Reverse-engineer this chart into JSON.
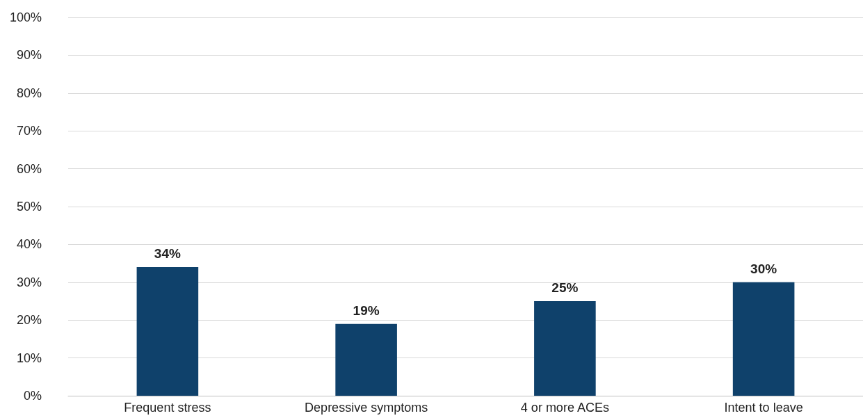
{
  "chart_data": {
    "type": "bar",
    "categories": [
      "Frequent stress",
      "Depressive symptoms",
      "4 or more ACEs",
      "Intent to leave"
    ],
    "values": [
      34,
      19,
      25,
      30
    ],
    "color": "#0f416b",
    "value_labels": [
      "34%",
      "19%",
      "25%",
      "30%"
    ],
    "ylim": [
      0,
      100
    ],
    "yticks": [
      {
        "value": 0,
        "label": "0%"
      },
      {
        "value": 10,
        "label": "10%"
      },
      {
        "value": 20,
        "label": "20%"
      },
      {
        "value": 30,
        "label": "30%"
      },
      {
        "value": 40,
        "label": "40%"
      },
      {
        "value": 50,
        "label": "50%"
      },
      {
        "value": 60,
        "label": "60%"
      },
      {
        "value": 70,
        "label": "70%"
      },
      {
        "value": 80,
        "label": "80%"
      },
      {
        "value": 90,
        "label": "90%"
      },
      {
        "value": 100,
        "label": "100%"
      }
    ],
    "grid": "y"
  }
}
